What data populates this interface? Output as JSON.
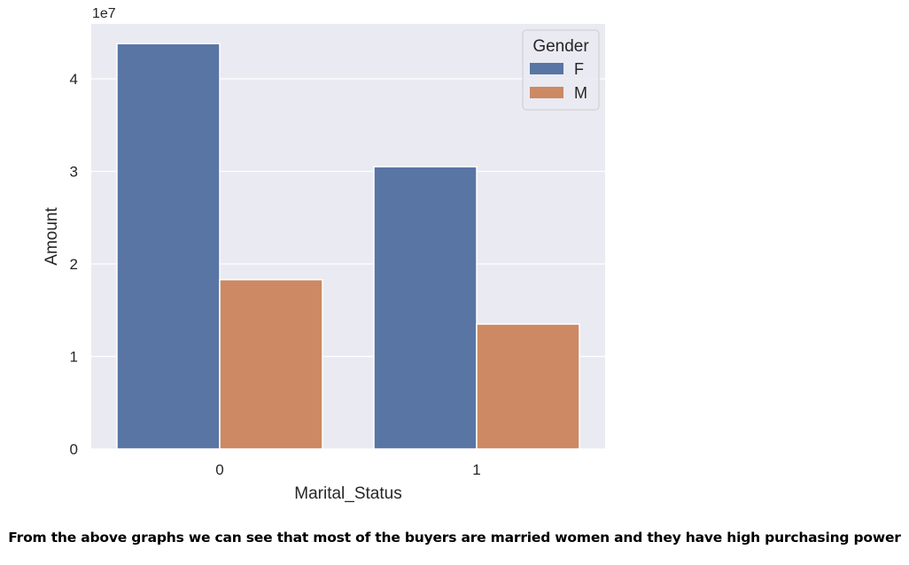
{
  "chart_data": {
    "type": "bar",
    "title": "",
    "xlabel": "Marital_Status",
    "ylabel": "Amount",
    "y_offset_label": "1e7",
    "categories": [
      "0",
      "1"
    ],
    "series": [
      {
        "name": "F",
        "values": [
          43800000.0,
          30500000.0
        ]
      },
      {
        "name": "M",
        "values": [
          18300000.0,
          13500000.0
        ]
      }
    ],
    "y_ticks": [
      {
        "value": 0,
        "label": "0"
      },
      {
        "value": 10000000.0,
        "label": "1"
      },
      {
        "value": 20000000.0,
        "label": "2"
      },
      {
        "value": 30000000.0,
        "label": "3"
      },
      {
        "value": 40000000.0,
        "label": "4"
      }
    ],
    "ylim": [
      0,
      46000000.0
    ],
    "grid": true,
    "legend": {
      "title": "Gender",
      "placement": "top-right"
    },
    "colors": {
      "F": "#5875a4",
      "M": "#cc8963",
      "background": "#eaeaf2",
      "grid": "#ffffff"
    }
  },
  "caption": "From the above graphs we can see that most of the buyers are married women and they have high purchasing power"
}
